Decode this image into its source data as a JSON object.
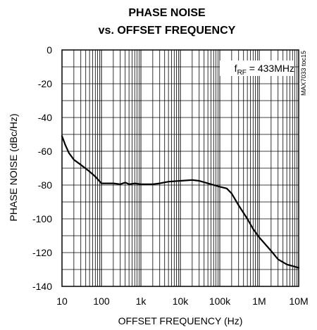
{
  "chart_data": {
    "type": "line",
    "title": "PHASE NOISE",
    "subtitle": "vs. OFFSET FREQUENCY",
    "xlabel": "OFFSET FREQUENCY (Hz)",
    "ylabel": "PHASE NOISE (dBc/Hz)",
    "x_scale": "log",
    "xlim": [
      10,
      10000000
    ],
    "ylim": [
      -140,
      0
    ],
    "x_tick_labels": [
      "10",
      "100",
      "1k",
      "10k",
      "100k",
      "1M",
      "10M"
    ],
    "y_tick_labels": [
      "0",
      "-20",
      "-40",
      "-60",
      "-80",
      "-100",
      "-120",
      "-140"
    ],
    "grid": true,
    "annotation": {
      "prefix": "f",
      "subscript": "RF",
      "text": " = 433MHz"
    },
    "figure_ref": "MAX7033 toc15",
    "series": [
      {
        "x": [
          10,
          12,
          15,
          20,
          30,
          50,
          70,
          100,
          150,
          200,
          300,
          400,
          500,
          700,
          1000,
          2000,
          3000,
          5000,
          10000,
          20000,
          30000,
          50000,
          100000,
          150000,
          200000,
          300000,
          500000,
          700000,
          1000000,
          2000000,
          3000000,
          5000000,
          10000000
        ],
        "y": [
          -51,
          -56,
          -61,
          -65,
          -68,
          -72,
          -75,
          -79,
          -79,
          -79,
          -79.5,
          -78.5,
          -79.5,
          -79,
          -79.5,
          -79.5,
          -79,
          -78,
          -77.5,
          -77,
          -77.5,
          -79,
          -81,
          -82,
          -85,
          -92,
          -100,
          -106,
          -111,
          -119,
          -124,
          -127,
          -129
        ]
      }
    ]
  }
}
